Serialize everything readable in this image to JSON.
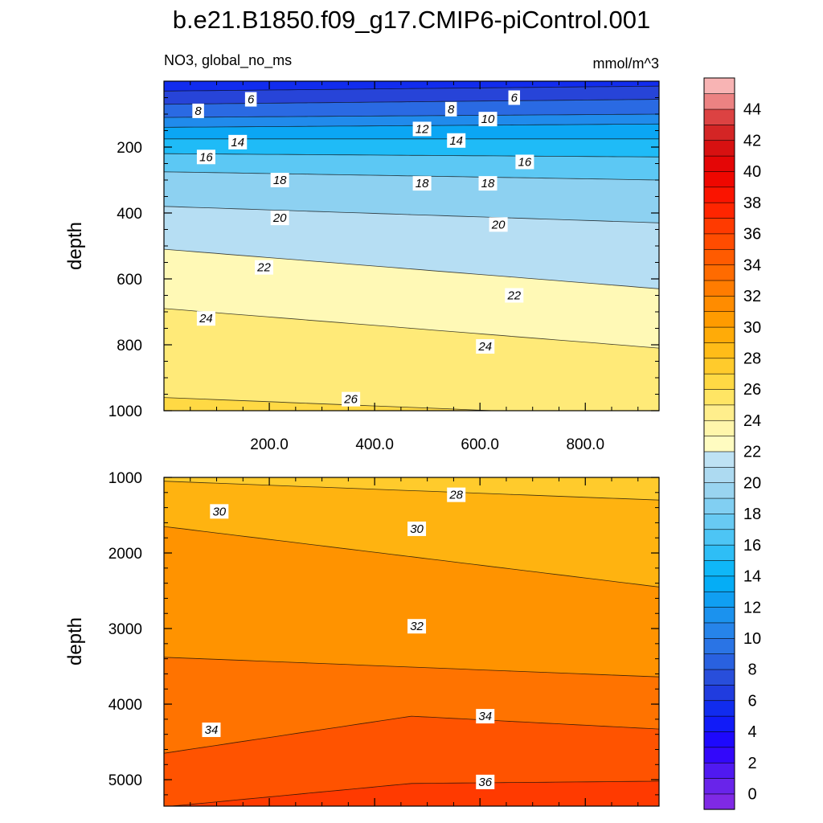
{
  "chart_data": {
    "type": "filled-contour",
    "title": "b.e21.B1850.f09_g17.CMIP6-piControl.001",
    "variable_label": "NO3, global_no_ms",
    "units": "mmol/m^3",
    "ylabel": "depth",
    "xlim": [
      0,
      940
    ],
    "x_tick_values": [
      200,
      400,
      600,
      800
    ],
    "x_tick_labels": [
      "200.0",
      "400.0",
      "600.0",
      "800.0"
    ],
    "panels": [
      {
        "name": "upper",
        "ylim": [
          0,
          1000
        ],
        "y_inverted": true,
        "y_tick_values": [
          200,
          400,
          600,
          800,
          1000
        ],
        "y_tick_labels": [
          "200",
          "400",
          "600",
          "800",
          "1000"
        ],
        "contour_levels": [
          {
            "value": 6,
            "depth_left": 30,
            "depth_right": 15
          },
          {
            "value": 8,
            "depth_left": 70,
            "depth_right": 55
          },
          {
            "value": 10,
            "depth_left": 110,
            "depth_right": 100
          },
          {
            "value": 12,
            "depth_left": 140,
            "depth_right": 130
          },
          {
            "value": 14,
            "depth_left": 175,
            "depth_right": 175
          },
          {
            "value": 16,
            "depth_left": 220,
            "depth_right": 230
          },
          {
            "value": 18,
            "depth_left": 275,
            "depth_right": 300
          },
          {
            "value": 20,
            "depth_left": 380,
            "depth_right": 430
          },
          {
            "value": 22,
            "depth_left": 510,
            "depth_right": 630
          },
          {
            "value": 24,
            "depth_left": 690,
            "depth_right": 810
          },
          {
            "value": 26,
            "depth_left": 960,
            "depth_right": 1020
          }
        ],
        "contour_labels": [
          {
            "text": "6",
            "x": 165,
            "depth": 55
          },
          {
            "text": "6",
            "x": 665,
            "depth": 50
          },
          {
            "text": "8",
            "x": 65,
            "depth": 90
          },
          {
            "text": "8",
            "x": 545,
            "depth": 85
          },
          {
            "text": "10",
            "x": 615,
            "depth": 115
          },
          {
            "text": "12",
            "x": 490,
            "depth": 145
          },
          {
            "text": "14",
            "x": 140,
            "depth": 185
          },
          {
            "text": "14",
            "x": 555,
            "depth": 180
          },
          {
            "text": "16",
            "x": 80,
            "depth": 230
          },
          {
            "text": "16",
            "x": 685,
            "depth": 245
          },
          {
            "text": "18",
            "x": 220,
            "depth": 300
          },
          {
            "text": "18",
            "x": 490,
            "depth": 310
          },
          {
            "text": "18",
            "x": 615,
            "depth": 310
          },
          {
            "text": "20",
            "x": 220,
            "depth": 415
          },
          {
            "text": "20",
            "x": 635,
            "depth": 435
          },
          {
            "text": "22",
            "x": 190,
            "depth": 565
          },
          {
            "text": "22",
            "x": 665,
            "depth": 650
          },
          {
            "text": "24",
            "x": 80,
            "depth": 720
          },
          {
            "text": "24",
            "x": 610,
            "depth": 805
          },
          {
            "text": "26",
            "x": 355,
            "depth": 965
          }
        ]
      },
      {
        "name": "lower",
        "ylim": [
          1000,
          5350
        ],
        "y_inverted": true,
        "y_tick_values": [
          1000,
          2000,
          3000,
          4000,
          5000
        ],
        "y_tick_labels": [
          "1000",
          "2000",
          "3000",
          "4000",
          "5000"
        ],
        "contour_levels": [
          {
            "value": 28,
            "depth_left": 1050,
            "depth_right": 1300
          },
          {
            "value": 30,
            "depth_left": 1650,
            "depth_right": 2450
          },
          {
            "value": 32,
            "depth_left": 3380,
            "depth_right": 3640
          },
          {
            "value": 34,
            "depth_left": 4650,
            "depth_mid": 4160,
            "depth_right": 4330
          },
          {
            "value": 36,
            "depth_left": 5360,
            "depth_mid": 5050,
            "depth_right": 5020
          }
        ],
        "contour_labels": [
          {
            "text": "28",
            "x": 555,
            "depth": 1230
          },
          {
            "text": "30",
            "x": 105,
            "depth": 1450
          },
          {
            "text": "30",
            "x": 480,
            "depth": 1680
          },
          {
            "text": "32",
            "x": 480,
            "depth": 2970
          },
          {
            "text": "34",
            "x": 90,
            "depth": 4340
          },
          {
            "text": "34",
            "x": 610,
            "depth": 4160
          },
          {
            "text": "36",
            "x": 610,
            "depth": 5030
          }
        ]
      }
    ],
    "colorbar": {
      "min": -1,
      "max": 46,
      "step": 1,
      "tick_values": [
        0,
        2,
        4,
        6,
        8,
        10,
        12,
        14,
        16,
        18,
        20,
        22,
        24,
        26,
        28,
        30,
        32,
        34,
        36,
        38,
        40,
        42,
        44
      ],
      "tick_labels": [
        "0",
        "2",
        "4",
        "6",
        "8",
        "10",
        "12",
        "14",
        "16",
        "18",
        "20",
        "22",
        "24",
        "26",
        "28",
        "30",
        "32",
        "34",
        "36",
        "38",
        "40",
        "42",
        "44"
      ],
      "color_stops": [
        {
          "value": -1,
          "color": "#8a2be2"
        },
        {
          "value": 1,
          "color": "#5e21ec"
        },
        {
          "value": 3,
          "color": "#2400ff"
        },
        {
          "value": 5,
          "color": "#0a24f5"
        },
        {
          "value": 7,
          "color": "#2744d8"
        },
        {
          "value": 10,
          "color": "#2b7de8"
        },
        {
          "value": 14,
          "color": "#00b4f8"
        },
        {
          "value": 17,
          "color": "#5cc8f4"
        },
        {
          "value": 20,
          "color": "#a5d6ef"
        },
        {
          "value": 22,
          "color": "#c6e6f6"
        },
        {
          "value": 22.01,
          "color": "#ffffcc"
        },
        {
          "value": 24,
          "color": "#fff3a0"
        },
        {
          "value": 26,
          "color": "#ffe050"
        },
        {
          "value": 28,
          "color": "#ffc420"
        },
        {
          "value": 30,
          "color": "#ffa200"
        },
        {
          "value": 32,
          "color": "#ff8400"
        },
        {
          "value": 34,
          "color": "#ff6200"
        },
        {
          "value": 36,
          "color": "#ff4400"
        },
        {
          "value": 38,
          "color": "#ff1a00"
        },
        {
          "value": 40,
          "color": "#ea0000"
        },
        {
          "value": 42,
          "color": "#d01616"
        },
        {
          "value": 44,
          "color": "#e05050"
        },
        {
          "value": 45,
          "color": "#f8b4b4"
        }
      ]
    }
  }
}
